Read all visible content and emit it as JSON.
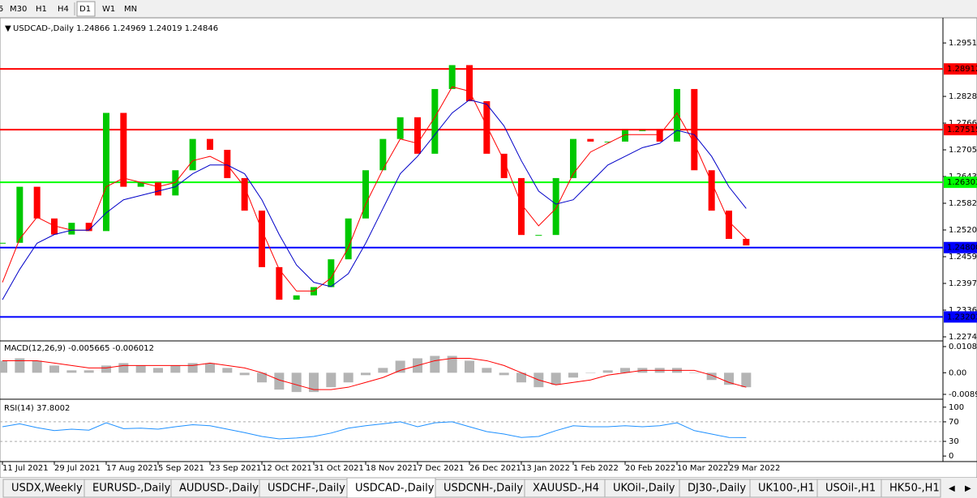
{
  "toolbar": {
    "timeframes": [
      "5",
      "M30",
      "H1",
      "H4",
      "D1",
      "W1",
      "MN"
    ],
    "active": "D1"
  },
  "chart_data": {
    "type": "candlestick",
    "header": "USDCAD-,Daily  1.24866 1.24969 1.24019 1.24846",
    "categories": [
      "11 Jul 2021",
      null,
      null,
      "29 Jul 2021",
      null,
      null,
      "17 Aug 2021",
      null,
      null,
      "5 Sep 2021",
      null,
      null,
      "23 Sep 2021",
      null,
      null,
      "12 Oct 2021",
      null,
      null,
      "31 Oct 2021",
      null,
      null,
      "18 Nov 2021",
      null,
      null,
      "7 Dec 2021",
      null,
      null,
      "26 Dec 2021",
      null,
      null,
      "13 Jan 2022",
      null,
      null,
      "1 Feb 2022",
      null,
      null,
      "20 Feb 2022",
      null,
      null,
      "10 Mar 2022",
      null,
      null,
      "29 Mar 2022",
      null
    ],
    "close": [
      1.2491,
      1.262,
      1.2547,
      1.251,
      1.2537,
      1.2518,
      1.279,
      1.262,
      1.263,
      1.26,
      1.2658,
      1.273,
      1.2705,
      1.264,
      1.2565,
      1.2435,
      1.236,
      1.237,
      1.2389,
      1.2453,
      1.2547,
      1.2658,
      1.273,
      1.278,
      1.2696,
      1.2845,
      1.29,
      1.2817,
      1.2696,
      1.264,
      1.2509,
      1.2509,
      1.264,
      1.273,
      1.2724,
      1.2724,
      1.275,
      1.275,
      1.2724,
      1.2845,
      1.2658,
      1.2565,
      1.25,
      1.2485
    ],
    "up_color": "#00c800",
    "down_color": "#ff0000",
    "series": [
      {
        "color": "#ff0000",
        "values": [
          1.24,
          1.25,
          1.255,
          1.253,
          1.252,
          1.252,
          1.262,
          1.264,
          1.263,
          1.262,
          1.263,
          1.268,
          1.269,
          1.267,
          1.262,
          1.252,
          1.243,
          1.238,
          1.238,
          1.241,
          1.248,
          1.258,
          1.266,
          1.273,
          1.272,
          1.278,
          1.285,
          1.284,
          1.276,
          1.268,
          1.258,
          1.253,
          1.257,
          1.265,
          1.27,
          1.272,
          1.274,
          1.274,
          1.274,
          1.279,
          1.272,
          1.263,
          1.254,
          1.25
        ]
      },
      {
        "color": "#0000c8",
        "values": [
          1.236,
          1.243,
          1.249,
          1.251,
          1.252,
          1.252,
          1.256,
          1.259,
          1.26,
          1.261,
          1.262,
          1.265,
          1.267,
          1.267,
          1.265,
          1.259,
          1.251,
          1.244,
          1.24,
          1.239,
          1.242,
          1.249,
          1.257,
          1.265,
          1.269,
          1.274,
          1.279,
          1.282,
          1.281,
          1.276,
          1.268,
          1.261,
          1.258,
          1.259,
          1.263,
          1.267,
          1.269,
          1.271,
          1.272,
          1.275,
          1.274,
          1.269,
          1.262,
          1.257
        ]
      }
    ],
    "levels": [
      {
        "value": 1.28912,
        "color": "#ff0000"
      },
      {
        "value": 1.27515,
        "color": "#ff0000"
      },
      {
        "value": 1.26303,
        "color": "#00ff00"
      },
      {
        "value": 1.248,
        "label": "1.24800",
        "color": "#0000ff"
      },
      {
        "value": 1.23203,
        "color": "#0000ff"
      }
    ],
    "ylim": [
      1.2267,
      1.2994
    ],
    "yticks": [
      {
        "value": 1.2951,
        "label": "1.29510"
      },
      {
        "value": 1.2828,
        "label": "1.28280"
      },
      1.27665,
      {
        "value": 1.2705,
        "label": "1.27050"
      },
      1.26435,
      {
        "value": 1.2582,
        "label": "1.25820"
      },
      1.25205,
      {
        "value": 1.2459,
        "label": "1.24590"
      },
      1.23975,
      {
        "value": 1.2336,
        "label": "1.23360"
      },
      1.22745
    ],
    "macd": {
      "label": "MACD(12,26,9) -0.005665 -0.006012",
      "histogram": [
        0.005,
        0.006,
        0.005,
        0.003,
        0.001,
        0.001,
        0.003,
        0.004,
        0.003,
        0.002,
        0.003,
        0.004,
        0.004,
        0.002,
        -0.001,
        -0.004,
        -0.007,
        -0.008,
        -0.008,
        -0.006,
        -0.004,
        -0.001,
        0.002,
        0.005,
        0.006,
        0.007,
        0.007,
        0.005,
        0.002,
        -0.001,
        -0.004,
        -0.006,
        -0.005,
        -0.002,
        0.0,
        0.001,
        0.002,
        0.002,
        0.002,
        0.002,
        0.0,
        -0.003,
        -0.005,
        -0.006
      ],
      "signal": [
        0.005,
        0.005,
        0.005,
        0.004,
        0.003,
        0.002,
        0.002,
        0.003,
        0.003,
        0.003,
        0.003,
        0.003,
        0.004,
        0.003,
        0.002,
        0.0,
        -0.003,
        -0.005,
        -0.007,
        -0.007,
        -0.006,
        -0.004,
        -0.002,
        0.001,
        0.003,
        0.005,
        0.006,
        0.006,
        0.005,
        0.003,
        0.0,
        -0.003,
        -0.005,
        -0.004,
        -0.003,
        -0.001,
        0.0,
        0.001,
        0.001,
        0.001,
        0.001,
        -0.001,
        -0.004,
        -0.006
      ],
      "hist_color": "#b4b4b4",
      "signal_color": "#ff0000",
      "ylim": [
        -0.01065,
        0.01255
      ],
      "yticks": [
        0.010865,
        {
          "value": 0,
          "label": "0.00"
        },
        -0.008974
      ]
    },
    "rsi": {
      "label": "RSI(14) 37.8002",
      "values": [
        60,
        66,
        58,
        52,
        55,
        53,
        68,
        56,
        57,
        55,
        60,
        64,
        62,
        55,
        48,
        40,
        35,
        37,
        40,
        47,
        57,
        62,
        66,
        70,
        60,
        68,
        70,
        60,
        50,
        45,
        38,
        40,
        52,
        62,
        60,
        60,
        62,
        60,
        62,
        68,
        52,
        45,
        38,
        37.8
      ],
      "color": "#1e90ff",
      "ylim": [
        -8,
        108
      ],
      "yticks": [
        100,
        70,
        30,
        0
      ],
      "levels": [
        70,
        30
      ]
    }
  },
  "tabs": [
    "USDX,Weekly",
    "EURUSD-,Daily",
    "AUDUSD-,Daily",
    "USDCHF-,Daily",
    "USDCAD-,Daily",
    "USDCNH-,Daily",
    "XAUUSD-,H4",
    "UKOil-,Daily",
    "DJ30-,Daily",
    "UK100-,H1",
    "USOil-,H1",
    "HK50-,H1"
  ],
  "active_tab": "USDCAD-,Daily"
}
